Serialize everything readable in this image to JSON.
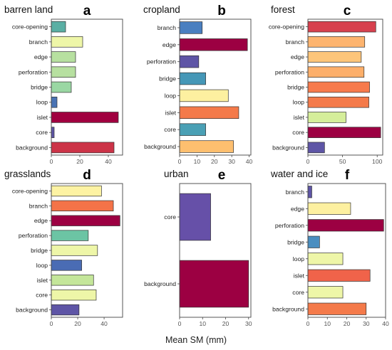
{
  "xlabel": "Mean SM (mm)",
  "chart_data": [
    {
      "type": "bar",
      "orientation": "horizontal",
      "title": "barren land",
      "letter": "a",
      "categories": [
        "core-opening",
        "branch",
        "edge",
        "perforation",
        "bridge",
        "loop",
        "islet",
        "core",
        "background"
      ],
      "values": [
        10,
        22,
        17,
        17,
        14,
        4,
        47,
        2,
        44
      ],
      "colors": [
        "#5aafa4",
        "#eef6a8",
        "#b7e0a0",
        "#b7e0a0",
        "#9ad7a3",
        "#4a73b4",
        "#a0003f",
        "#5e55a6",
        "#cc3347"
      ],
      "xlim": [
        0,
        50
      ],
      "xticks": [
        0,
        20,
        40
      ]
    },
    {
      "type": "bar",
      "orientation": "horizontal",
      "title": "cropland",
      "letter": "b",
      "categories": [
        "branch",
        "edge",
        "perforation",
        "bridge",
        "loop",
        "islet",
        "core",
        "background"
      ],
      "values": [
        13,
        39,
        11,
        15,
        28,
        34,
        15,
        31
      ],
      "colors": [
        "#4a7fc0",
        "#9c0042",
        "#5e55a6",
        "#4597b7",
        "#fdf0a0",
        "#f47a4a",
        "#4aa0b5",
        "#fdbf6f"
      ],
      "xlim": [
        0,
        41
      ],
      "xticks": [
        0,
        10,
        20,
        30,
        40
      ]
    },
    {
      "type": "bar",
      "orientation": "horizontal",
      "title": "forest",
      "letter": "c",
      "categories": [
        "core-opening",
        "branch",
        "edge",
        "perforation",
        "bridge",
        "loop",
        "islet",
        "core",
        "background"
      ],
      "values": [
        98,
        82,
        77,
        81,
        89,
        88,
        55,
        105,
        24
      ],
      "colors": [
        "#d7404e",
        "#fdb46f",
        "#fdc57a",
        "#fdaf6a",
        "#f77a4c",
        "#f47a4a",
        "#d5ee9a",
        "#9c0042",
        "#5e55a6"
      ],
      "xlim": [
        0,
        108
      ],
      "xticks": [
        0,
        50,
        100
      ]
    },
    {
      "type": "bar",
      "orientation": "horizontal",
      "title": "grasslands",
      "letter": "d",
      "categories": [
        "core-opening",
        "branch",
        "edge",
        "perforation",
        "bridge",
        "loop",
        "islet",
        "core",
        "background"
      ],
      "values": [
        38,
        47,
        52,
        28,
        35,
        23,
        32,
        34,
        21
      ],
      "colors": [
        "#fdf3a3",
        "#f47348",
        "#9c0042",
        "#6cc4a4",
        "#eef6a8",
        "#4a6cb4",
        "#c4e69a",
        "#eef6a8",
        "#5e55a6"
      ],
      "xlim": [
        0,
        54
      ],
      "xticks": [
        0,
        20,
        40
      ]
    },
    {
      "type": "bar",
      "orientation": "horizontal",
      "title": "urban",
      "letter": "e",
      "categories": [
        "core",
        "background"
      ],
      "values": [
        13.5,
        30
      ],
      "colors": [
        "#6650a8",
        "#9c0042"
      ],
      "xlim": [
        0,
        31
      ],
      "xticks": [
        0,
        10,
        20,
        30
      ]
    },
    {
      "type": "bar",
      "orientation": "horizontal",
      "title": "water and ice",
      "letter": "f",
      "categories": [
        "branch",
        "edge",
        "perforation",
        "bridge",
        "loop",
        "islet",
        "core",
        "background"
      ],
      "values": [
        2,
        22,
        39,
        6,
        18,
        32,
        18,
        30
      ],
      "colors": [
        "#5e55a6",
        "#fdf0a0",
        "#9c0042",
        "#4a8ec0",
        "#eef6a8",
        "#f0634a",
        "#eef6a8",
        "#f47a4a"
      ],
      "xlim": [
        0,
        40
      ],
      "xticks": [
        0,
        10,
        20,
        30,
        40
      ]
    }
  ]
}
